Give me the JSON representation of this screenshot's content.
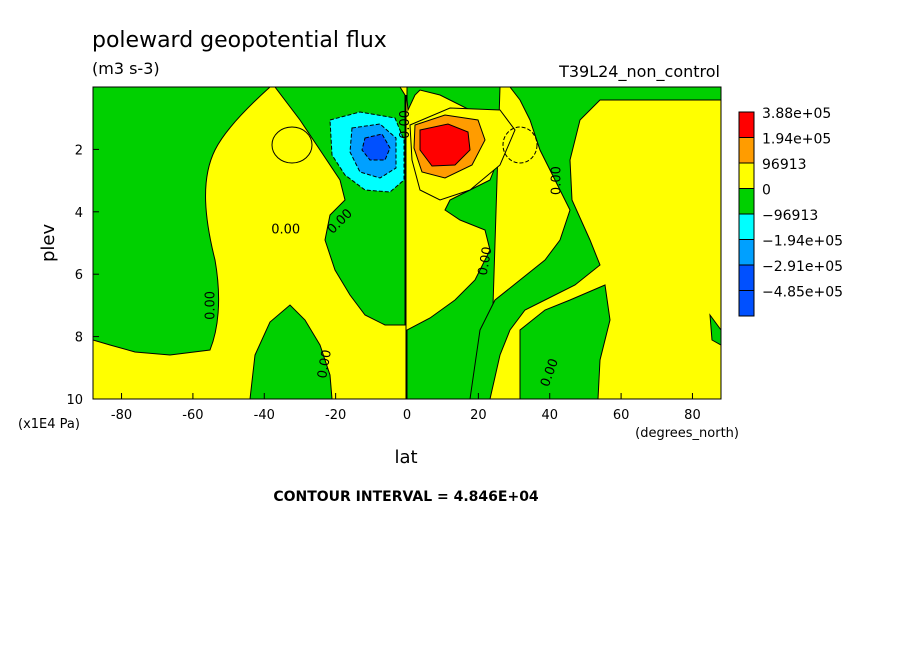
{
  "chart_data": {
    "type": "heatmap",
    "title": "poleward geopotential flux",
    "units": "(m3 s-3)",
    "run_label": "T39L24_non_control",
    "xlabel": "lat",
    "x_units": "(degrees_north)",
    "ylabel": "plev",
    "y_units": "(x1E4 Pa)",
    "xlim": [
      -88,
      88
    ],
    "ylim": [
      10,
      0
    ],
    "x_ticks": [
      {
        "value": -80,
        "label": "-80"
      },
      {
        "value": -60,
        "label": "-60"
      },
      {
        "value": -40,
        "label": "-40"
      },
      {
        "value": -20,
        "label": "-20"
      },
      {
        "value": 0,
        "label": "0"
      },
      {
        "value": 20,
        "label": "20"
      },
      {
        "value": 40,
        "label": "40"
      },
      {
        "value": 60,
        "label": "60"
      },
      {
        "value": 80,
        "label": "80"
      }
    ],
    "y_ticks": [
      {
        "value": 2,
        "label": "2"
      },
      {
        "value": 4,
        "label": "4"
      },
      {
        "value": 6,
        "label": "6"
      },
      {
        "value": 8,
        "label": "8"
      },
      {
        "value": 10,
        "label": "10"
      }
    ],
    "contour_interval": "CONTOUR INTERVAL = 4.846E+04",
    "contour_labels": [
      "0.00",
      "0.00",
      "0.00",
      "0.00",
      "0.00",
      "0.00",
      "0.00",
      "0.00"
    ],
    "colorbar": [
      {
        "label": "3.88e+05",
        "color": "#ff0000"
      },
      {
        "label": "1.94e+05",
        "color": "#ff9c00"
      },
      {
        "label": "96913",
        "color": "#ffff00"
      },
      {
        "label": "0",
        "color": "#00d000"
      },
      {
        "label": "−96913",
        "color": "#00ffff"
      },
      {
        "label": "−1.94e+05",
        "color": "#00a0ff"
      },
      {
        "label": "−2.91e+05",
        "color": "#0050ff"
      },
      {
        "label": "−4.85e+05",
        "color": "#0050ff"
      }
    ],
    "regions": [
      {
        "lat": [
          -88,
          -58
        ],
        "plev": [
          0.2,
          8.5
        ],
        "sign": "negative"
      },
      {
        "lat": [
          -40,
          -20
        ],
        "plev": [
          7,
          10
        ],
        "sign": "negative"
      },
      {
        "lat": [
          -30,
          0
        ],
        "plev": [
          0.2,
          7.5
        ],
        "sign": "negative"
      },
      {
        "lat": [
          0,
          20
        ],
        "plev": [
          2,
          10
        ],
        "sign": "negative"
      },
      {
        "lat": [
          20,
          88
        ],
        "plev": [
          0.2,
          10
        ],
        "sign": "negative"
      },
      {
        "lat": [
          -18,
          -2
        ],
        "plev": [
          1,
          3
        ],
        "sign": "strong negative",
        "extremum_plev": 2,
        "extremum_lat": -9
      },
      {
        "lat": [
          2,
          22
        ],
        "plev": [
          0.8,
          2.8
        ],
        "sign": "strong positive",
        "extremum_plev": 2,
        "extremum_lat": 8
      }
    ]
  }
}
